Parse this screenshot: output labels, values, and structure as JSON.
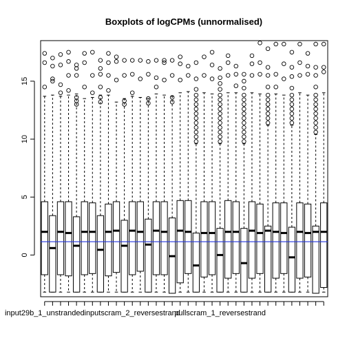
{
  "chart_data": {
    "type": "boxplot",
    "title": "Boxplots of logCPMs (unnormalised)",
    "xlabel": "",
    "ylabel": "",
    "ylim": [
      -3.6,
      18.5
    ],
    "yticks": [
      0,
      5,
      10,
      15
    ],
    "hline": {
      "y": 1.15,
      "color": "#2233dd"
    },
    "visible_xlabels": [
      {
        "index": 0,
        "text": "input29b_1_unstranded"
      },
      {
        "index": 11,
        "text": "inputscram_2_reversestrand"
      },
      {
        "index": 22,
        "text": "pullscram_1_reversestrand"
      }
    ],
    "boxes": [
      {
        "q1": -1.7,
        "median": 2.0,
        "q3": 4.6,
        "lo": -3.2,
        "hi": 13.7,
        "outliers": [
          14.5,
          16.6,
          17.4
        ]
      },
      {
        "q1": -3.2,
        "median": 0.6,
        "q3": 3.4,
        "lo": -3.2,
        "hi": 13.8,
        "outliers": [
          15.0,
          15.2,
          16.3,
          17.0
        ]
      },
      {
        "q1": -1.7,
        "median": 2.0,
        "q3": 4.6,
        "lo": -3.2,
        "hi": 13.7,
        "outliers": [
          14.0,
          14.7,
          16.4,
          17.3
        ]
      },
      {
        "q1": -1.8,
        "median": 1.9,
        "q3": 4.6,
        "lo": -3.2,
        "hi": 13.8,
        "outliers": [
          14.2,
          15.5,
          16.7,
          17.5
        ]
      },
      {
        "q1": -3.2,
        "median": 0.8,
        "q3": 3.3,
        "lo": -3.2,
        "hi": 13.9,
        "outliers": [
          13.0,
          13.3,
          13.6,
          15.5,
          16.1,
          16.4
        ]
      },
      {
        "q1": -1.7,
        "median": 2.0,
        "q3": 4.6,
        "lo": -3.2,
        "hi": 13.5,
        "outliers": [
          14.5,
          16.6,
          17.4
        ]
      },
      {
        "q1": -1.6,
        "median": 2.0,
        "q3": 4.5,
        "lo": -3.2,
        "hi": 13.6,
        "outliers": [
          14.0,
          15.5,
          17.5
        ]
      },
      {
        "q1": -3.2,
        "median": 0.45,
        "q3": 3.4,
        "lo": -3.2,
        "hi": 13.8,
        "outliers": [
          13.2,
          13.6,
          14.5,
          15.6,
          16.1,
          16.8
        ]
      },
      {
        "q1": -1.8,
        "median": 2.0,
        "q3": 4.4,
        "lo": -3.2,
        "hi": 13.8,
        "outliers": [
          14.2,
          15.5,
          16.6,
          17.4
        ]
      },
      {
        "q1": -1.5,
        "median": 2.1,
        "q3": 4.6,
        "lo": -3.2,
        "hi": 13.2,
        "outliers": [
          15.1,
          16.7,
          17.1
        ]
      },
      {
        "q1": -3.2,
        "median": 0.8,
        "q3": 3.0,
        "lo": -3.2,
        "hi": 13.5,
        "outliers": [
          13.0,
          13.3,
          15.5,
          16.8
        ]
      },
      {
        "q1": -1.7,
        "median": 2.1,
        "q3": 4.6,
        "lo": -3.2,
        "hi": 13.7,
        "outliers": [
          14.0,
          15.6,
          16.8
        ]
      },
      {
        "q1": -1.4,
        "median": 2.0,
        "q3": 4.6,
        "lo": -3.2,
        "hi": 13.6,
        "outliers": [
          15.2,
          16.8
        ]
      },
      {
        "q1": -3.2,
        "median": 0.9,
        "q3": 3.1,
        "lo": -3.2,
        "hi": 13.5,
        "outliers": [
          13.1,
          13.5,
          15.6,
          16.7
        ]
      },
      {
        "q1": -1.7,
        "median": 2.1,
        "q3": 4.6,
        "lo": -3.2,
        "hi": 13.9,
        "outliers": [
          14.5,
          15.3,
          16.8
        ]
      },
      {
        "q1": -1.7,
        "median": 2.0,
        "q3": 4.6,
        "lo": -3.2,
        "hi": 13.8,
        "outliers": [
          15.1,
          16.6,
          16.8
        ]
      },
      {
        "q1": -3.3,
        "median": -0.1,
        "q3": 3.2,
        "lo": -3.3,
        "hi": 13.7,
        "outliers": [
          13.2,
          13.6,
          15.5,
          16.8
        ]
      },
      {
        "q1": -2.4,
        "median": 2.1,
        "q3": 4.7,
        "lo": -3.2,
        "hi": 14.0,
        "outliers": [
          15.1,
          16.5,
          17.1
        ]
      },
      {
        "q1": -1.6,
        "median": 2.0,
        "q3": 4.7,
        "lo": -3.2,
        "hi": 14.1,
        "outliers": [
          15.5,
          16.3
        ]
      },
      {
        "q1": -3.2,
        "median": -0.9,
        "q3": 1.9,
        "lo": -3.2,
        "hi": 9.6,
        "outliers": [
          9.8,
          10.2,
          10.6,
          11.0,
          11.4,
          11.8,
          12.2,
          12.6,
          13.0,
          13.4,
          13.8,
          14.3,
          15.2,
          16.6
        ]
      },
      {
        "q1": -1.9,
        "median": 1.9,
        "q3": 4.6,
        "lo": -3.2,
        "hi": 14.0,
        "outliers": [
          15.5,
          17.1
        ]
      },
      {
        "q1": -1.7,
        "median": 1.9,
        "q3": 4.6,
        "lo": -3.2,
        "hi": 13.9,
        "outliers": [
          15.2,
          16.4,
          17.5
        ]
      },
      {
        "q1": -3.2,
        "median": 0.0,
        "q3": 2.3,
        "lo": -3.2,
        "hi": 9.6,
        "outliers": [
          9.8,
          10.2,
          10.6,
          11.0,
          11.4,
          11.8,
          12.2,
          12.6,
          13.0,
          13.4,
          13.8,
          14.3,
          14.8,
          15.3,
          16.1
        ]
      },
      {
        "q1": -2.0,
        "median": 2.0,
        "q3": 4.7,
        "lo": -3.2,
        "hi": 14.0,
        "outliers": [
          15.5,
          16.6,
          17.2
        ]
      },
      {
        "q1": -1.6,
        "median": 2.0,
        "q3": 4.6,
        "lo": -3.2,
        "hi": 14.0,
        "outliers": [
          14.6,
          15.6,
          16.3
        ]
      },
      {
        "q1": -3.2,
        "median": -0.7,
        "q3": 2.3,
        "lo": -3.2,
        "hi": 9.6,
        "outliers": [
          9.8,
          10.2,
          10.6,
          11.0,
          11.4,
          11.8,
          12.2,
          12.6,
          13.0,
          13.4,
          13.8,
          14.4,
          15.0,
          15.6
        ]
      },
      {
        "q1": -2.0,
        "median": 2.1,
        "q3": 4.6,
        "lo": -3.2,
        "hi": 14.0,
        "outliers": [
          15.5,
          16.5,
          17.2
        ]
      },
      {
        "q1": -1.6,
        "median": 1.9,
        "q3": 4.4,
        "lo": -3.2,
        "hi": 13.9,
        "outliers": [
          15.6,
          16.6,
          18.3
        ]
      },
      {
        "q1": -3.2,
        "median": 2.1,
        "q3": 2.5,
        "lo": -3.2,
        "hi": 11.2,
        "outliers": [
          11.4,
          11.8,
          12.2,
          12.6,
          13.0,
          13.4,
          13.8,
          14.5,
          15.5,
          16.2,
          17.8
        ]
      },
      {
        "q1": -2.0,
        "median": 2.0,
        "q3": 4.5,
        "lo": -3.2,
        "hi": 13.9,
        "outliers": [
          14.5,
          15.6,
          18.2
        ]
      },
      {
        "q1": -1.6,
        "median": 1.9,
        "q3": 4.5,
        "lo": -3.2,
        "hi": 13.8,
        "outliers": [
          15.2,
          16.5,
          18.2
        ]
      },
      {
        "q1": -3.2,
        "median": -0.2,
        "q3": 2.4,
        "lo": -3.2,
        "hi": 11.2,
        "outliers": [
          11.4,
          11.8,
          12.2,
          12.6,
          13.0,
          13.4,
          13.8,
          14.4,
          15.4,
          16.2,
          17.5
        ]
      },
      {
        "q1": -2.0,
        "median": 2.0,
        "q3": 4.5,
        "lo": -3.2,
        "hi": 14.0,
        "outliers": [
          15.5,
          16.6,
          18.2
        ]
      },
      {
        "q1": -1.9,
        "median": 1.9,
        "q3": 4.4,
        "lo": -3.2,
        "hi": 13.8,
        "outliers": [
          15.6,
          16.3,
          17.4
        ]
      },
      {
        "q1": -3.3,
        "median": 2.0,
        "q3": 2.5,
        "lo": -3.3,
        "hi": 10.4,
        "outliers": [
          10.6,
          11.0,
          11.4,
          11.8,
          12.2,
          12.6,
          13.0,
          13.4,
          13.8,
          14.5,
          15.5,
          16.2,
          18.2
        ]
      },
      {
        "q1": -2.8,
        "median": 2.0,
        "q3": 4.5,
        "lo": -3.2,
        "hi": 14.0,
        "outliers": [
          15.8,
          16.2,
          18.2
        ]
      }
    ]
  }
}
